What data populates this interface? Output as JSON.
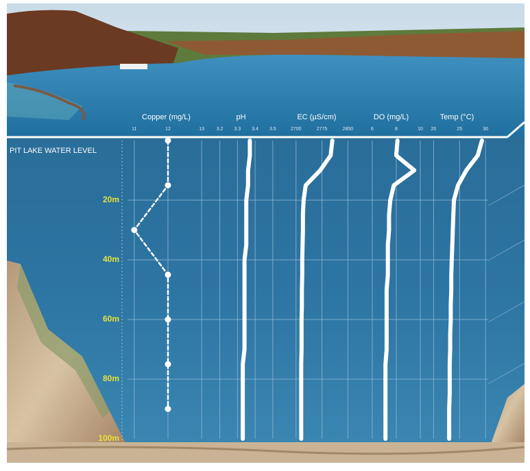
{
  "chart_data": {
    "type": "line",
    "annotation": "PIT LAKE WATER LEVEL",
    "ylim": [
      0,
      100
    ],
    "yticks": [
      {
        "value": 20,
        "label": "20m"
      },
      {
        "value": 40,
        "label": "40m"
      },
      {
        "value": 60,
        "label": "60m"
      },
      {
        "value": 80,
        "label": "80m"
      },
      {
        "value": 100,
        "label": "100m"
      }
    ],
    "grid": true,
    "panels": [
      {
        "name": "Copper (mg/L)",
        "color": "#ffffff",
        "dashed": true,
        "markers": true,
        "xlim": [
          10.8,
          13.1
        ],
        "xticks": [
          11,
          12,
          13
        ],
        "depth": [
          0,
          15,
          30,
          45,
          60,
          75,
          90
        ],
        "values": [
          12,
          12,
          11,
          12,
          12,
          12,
          12
        ]
      },
      {
        "name": "pH",
        "color": "#ffffff",
        "dashed": false,
        "markers": false,
        "xlim": [
          3.12,
          3.52
        ],
        "xticks": [
          3.2,
          3.3,
          3.4,
          3.5
        ],
        "depth": [
          0,
          5,
          10,
          15,
          20,
          25,
          30,
          35,
          40,
          45,
          50,
          55,
          60,
          65,
          70,
          75,
          80,
          85,
          90,
          95,
          100
        ],
        "values": [
          3.37,
          3.37,
          3.36,
          3.36,
          3.35,
          3.35,
          3.35,
          3.35,
          3.34,
          3.34,
          3.34,
          3.34,
          3.34,
          3.34,
          3.34,
          3.33,
          3.33,
          3.33,
          3.33,
          3.33,
          3.33
        ]
      },
      {
        "name": "EC (µS/cm)",
        "color": "#ffffff",
        "dashed": false,
        "markers": false,
        "xlim": [
          2645,
          2875
        ],
        "xticks": [
          2700,
          2775,
          2850
        ],
        "depth": [
          0,
          5,
          10,
          15,
          20,
          25,
          30,
          35,
          40,
          45,
          50,
          55,
          60,
          65,
          70,
          75,
          80,
          85,
          90,
          95,
          100
        ],
        "values": [
          2805,
          2800,
          2770,
          2728,
          2722,
          2720,
          2720,
          2719,
          2718,
          2718,
          2717,
          2717,
          2716,
          2716,
          2716,
          2715,
          2715,
          2715,
          2715,
          2715,
          2715
        ]
      },
      {
        "name": "DO (mg/L)",
        "color": "#ffffff",
        "dashed": false,
        "markers": false,
        "xlim": [
          4.75,
          10.4
        ],
        "xticks": [
          6,
          8,
          10
        ],
        "depth": [
          0,
          5,
          10,
          15,
          20,
          25,
          30,
          35,
          40,
          45,
          50,
          55,
          60,
          65,
          70,
          75,
          80,
          85,
          90,
          95,
          100
        ],
        "values": [
          8.1,
          8.0,
          9.5,
          7.8,
          7.5,
          7.4,
          7.4,
          7.3,
          7.3,
          7.3,
          7.2,
          7.2,
          7.2,
          7.2,
          7.2,
          7.1,
          7.1,
          7.1,
          7.1,
          7.1,
          7.1
        ]
      },
      {
        "name": "Temp (°C)",
        "color": "#ffffff",
        "dashed": false,
        "markers": false,
        "xlim": [
          18.5,
          30.5
        ],
        "xticks": [
          20,
          25,
          30
        ],
        "depth": [
          0,
          5,
          10,
          15,
          20,
          25,
          30,
          35,
          40,
          45,
          50,
          55,
          60,
          65,
          70,
          75,
          80,
          85,
          90,
          95,
          100
        ],
        "values": [
          29.3,
          28.5,
          26.3,
          24.7,
          23.9,
          23.8,
          23.7,
          23.6,
          23.5,
          23.4,
          23.4,
          23.3,
          23.3,
          23.2,
          23.2,
          23.1,
          23.1,
          23.1,
          23.0,
          23.0,
          23.0
        ]
      }
    ]
  }
}
